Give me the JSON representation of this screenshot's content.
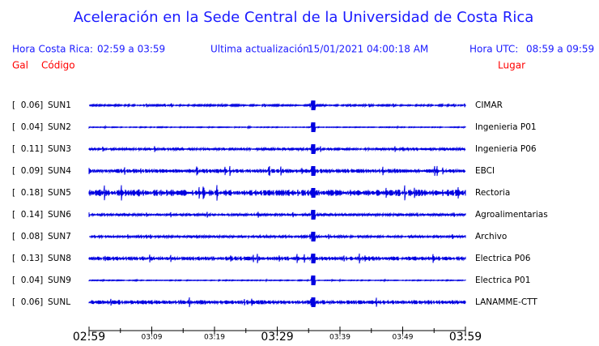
{
  "header": {
    "title": "Aceleración en la Sede Central de la Universidad de Costa Rica",
    "local_label": "Hora Costa Rica:",
    "local_range": "02:59 a 03:59",
    "update_label": "Ultima actualización:",
    "update_time": "15/01/2021 04:00:18 AM",
    "utc_label": "Hora UTC:",
    "utc_range": "08:59 a 09:59",
    "gal": "Gal",
    "code": "Código",
    "place": "Lugar"
  },
  "stations": [
    {
      "gal": "[  0.06]",
      "code": "SUN1",
      "place": "CIMAR"
    },
    {
      "gal": "[  0.04]",
      "code": "SUN2",
      "place": "Ingenieria P01"
    },
    {
      "gal": "[  0.11]",
      "code": "SUN3",
      "place": "Ingenieria P06"
    },
    {
      "gal": "[  0.09]",
      "code": "SUN4",
      "place": "EBCI"
    },
    {
      "gal": "[  0.18]",
      "code": "SUN5",
      "place": "Rectoria"
    },
    {
      "gal": "[  0.14]",
      "code": "SUN6",
      "place": "Agroalimentarias"
    },
    {
      "gal": "[  0.08]",
      "code": "SUN7",
      "place": "Archivo"
    },
    {
      "gal": "[  0.13]",
      "code": "SUN8",
      "place": "Electrica P06"
    },
    {
      "gal": "[  0.04]",
      "code": "SUN9",
      "place": "Electrica P01"
    },
    {
      "gal": "[  0.06]",
      "code": "SUNL",
      "place": "LANAMME-CTT"
    }
  ],
  "time_axis": {
    "ticks": [
      {
        "label": "02:59",
        "major": true
      },
      {
        "label": "03:09",
        "major": false
      },
      {
        "label": "03:19",
        "major": false
      },
      {
        "label": "03:29",
        "major": true
      },
      {
        "label": "03:39",
        "major": false
      },
      {
        "label": "03:49",
        "major": false
      },
      {
        "label": "03:59",
        "major": true
      }
    ]
  }
}
